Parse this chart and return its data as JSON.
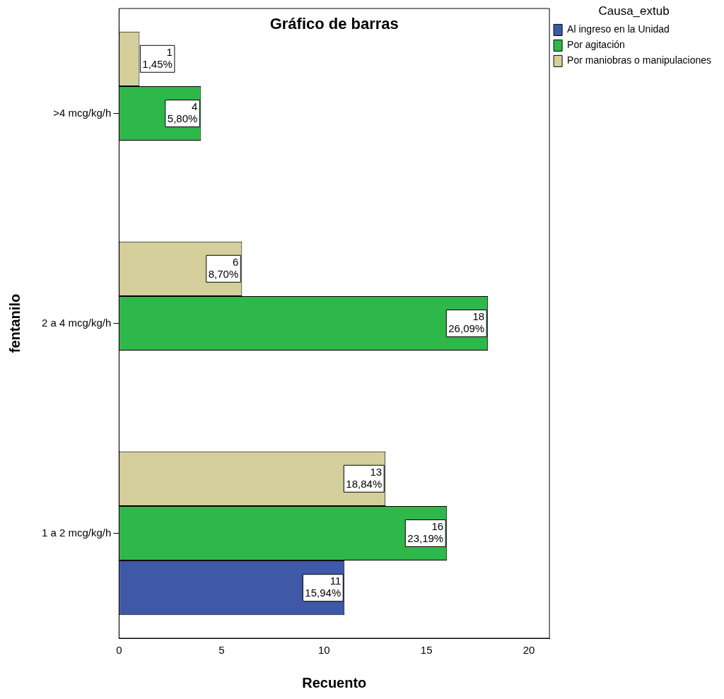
{
  "chart_data": {
    "type": "bar",
    "orientation": "horizontal",
    "title": "Gráfico de barras",
    "xlabel": "Recuento",
    "ylabel": "fentanilo",
    "legend_title": "Causa_extub",
    "legend": "top right",
    "categories": [
      ">4 mcg/kg/h",
      "2 a 4 mcg/kg/h",
      "1 a 2 mcg/kg/h"
    ],
    "series": [
      {
        "name": "Al ingreso en la Unidad",
        "color": "#3f59a8",
        "values": [
          null,
          null,
          11
        ],
        "value_labels": [
          null,
          null,
          "11\n15,94%"
        ]
      },
      {
        "name": "Por agitación",
        "color": "#2eb84a",
        "values": [
          4,
          18,
          16
        ],
        "value_labels": [
          "4\n5,80%",
          "18\n26,09%",
          "16\n23,19%"
        ]
      },
      {
        "name": "Por maniobras o manipulaciones",
        "color": "#d4cf9b",
        "values": [
          1,
          6,
          13
        ],
        "value_labels": [
          "1\n1,45%",
          "6\n8,70%",
          "13\n18,84%"
        ]
      }
    ],
    "xlim": [
      0,
      21
    ],
    "xticks": [
      0,
      5,
      10,
      15,
      20
    ],
    "grid": false
  }
}
